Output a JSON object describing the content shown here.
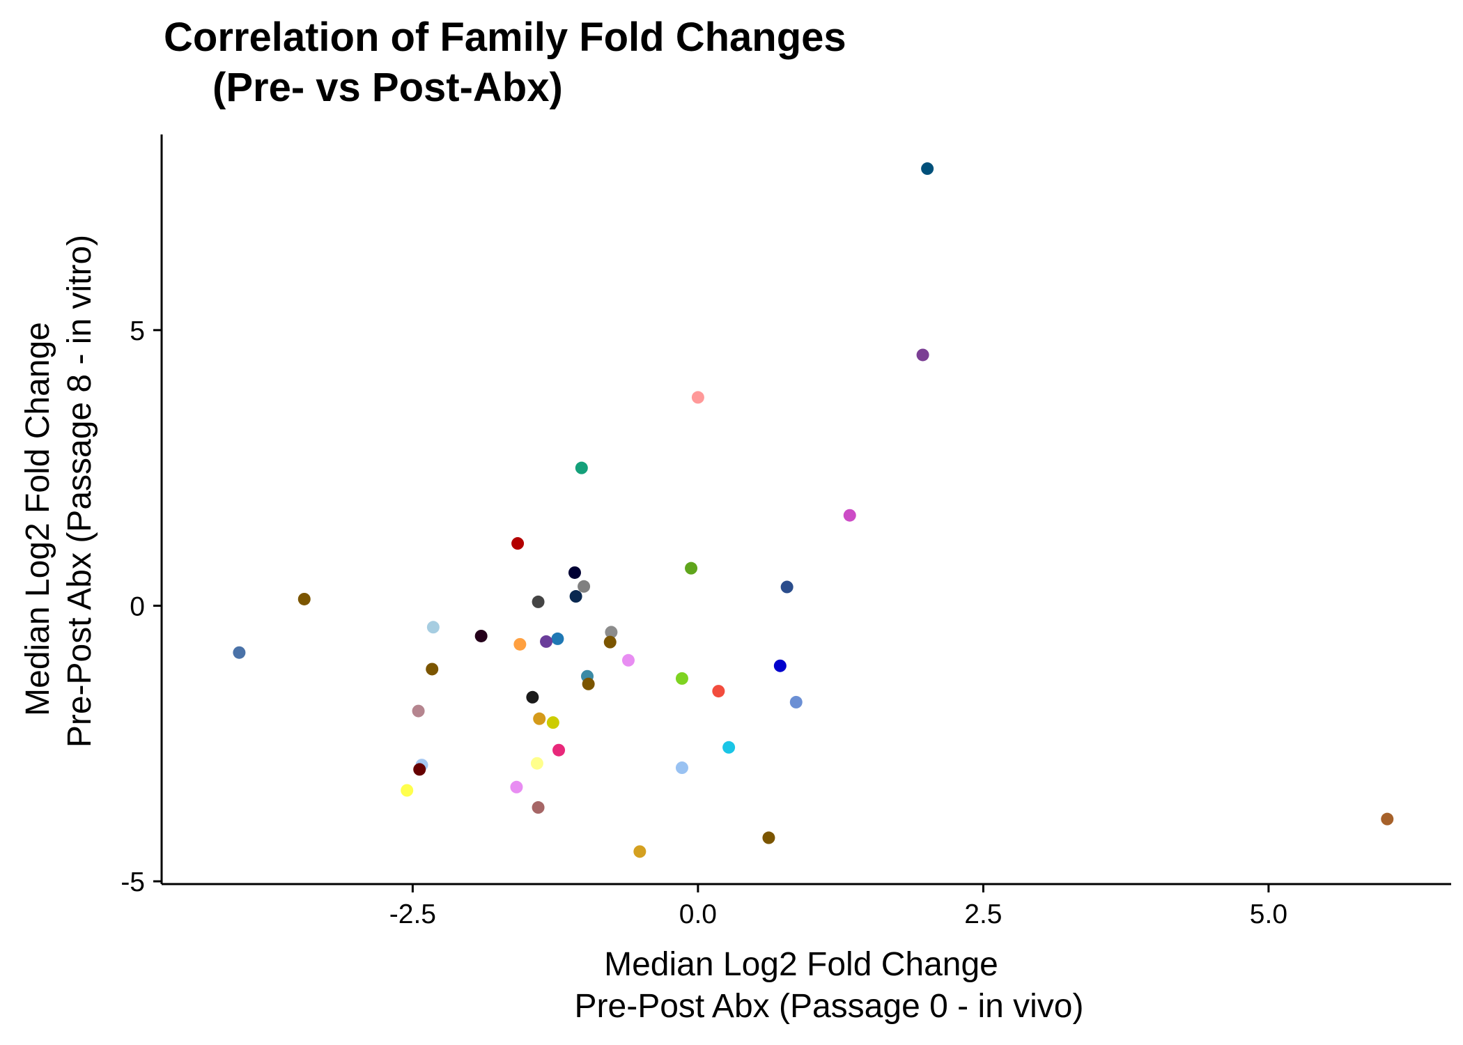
{
  "chart_data": {
    "type": "scatter",
    "title_lines": [
      "Correlation of Family Fold Changes",
      "(Pre- vs Post-Abx)"
    ],
    "xlabel_lines": [
      "Median Log2 Fold Change",
      "Pre-Post Abx (Passage 0 - in vivo)"
    ],
    "ylabel_lines": [
      "Median Log2 Fold Change",
      "Pre-Post Abx (Passage 8 - in vitro)"
    ],
    "xlim": [
      -4.7,
      6.6
    ],
    "ylim": [
      -5.05,
      8.55
    ],
    "x_ticks": [
      {
        "value": -2.5,
        "label": "-2.5"
      },
      {
        "value": 0.0,
        "label": "0.0"
      },
      {
        "value": 2.5,
        "label": "2.5"
      },
      {
        "value": 5.0,
        "label": "5.0"
      }
    ],
    "y_ticks": [
      {
        "value": -5,
        "label": "-5"
      },
      {
        "value": 0,
        "label": "0"
      },
      {
        "value": 5,
        "label": "5"
      }
    ],
    "grid": false,
    "legend": "none",
    "points": [
      {
        "x": 2.01,
        "y": 7.93,
        "color": "#00507a"
      },
      {
        "x": 1.97,
        "y": 4.55,
        "color": "#7b3f94"
      },
      {
        "x": 0.0,
        "y": 3.78,
        "color": "#ff9999"
      },
      {
        "x": -1.02,
        "y": 2.5,
        "color": "#14a07a"
      },
      {
        "x": 1.33,
        "y": 1.64,
        "color": "#cc4cc6"
      },
      {
        "x": -1.58,
        "y": 1.13,
        "color": "#b30000"
      },
      {
        "x": -0.06,
        "y": 0.68,
        "color": "#5fa51c"
      },
      {
        "x": -1.08,
        "y": 0.6,
        "color": "#000033"
      },
      {
        "x": -1.0,
        "y": 0.35,
        "color": "#808080"
      },
      {
        "x": 0.78,
        "y": 0.34,
        "color": "#2b4d8c"
      },
      {
        "x": -1.07,
        "y": 0.17,
        "color": "#0a2850"
      },
      {
        "x": -3.45,
        "y": 0.12,
        "color": "#7b5500"
      },
      {
        "x": -1.4,
        "y": 0.07,
        "color": "#444444"
      },
      {
        "x": -4.02,
        "y": -0.85,
        "color": "#4a72a8"
      },
      {
        "x": -2.32,
        "y": -0.39,
        "color": "#a6cde1"
      },
      {
        "x": -0.76,
        "y": -0.48,
        "color": "#8c8c8c"
      },
      {
        "x": -1.9,
        "y": -0.55,
        "color": "#24001a"
      },
      {
        "x": -1.23,
        "y": -0.6,
        "color": "#1f78b4"
      },
      {
        "x": -1.33,
        "y": -0.65,
        "color": "#6a3d9a"
      },
      {
        "x": -1.56,
        "y": -0.7,
        "color": "#ffa040"
      },
      {
        "x": -0.77,
        "y": -0.66,
        "color": "#7b5500"
      },
      {
        "x": -0.61,
        "y": -0.99,
        "color": "#e88df2"
      },
      {
        "x": -2.33,
        "y": -1.15,
        "color": "#7b5500"
      },
      {
        "x": 0.72,
        "y": -1.09,
        "color": "#0000cc"
      },
      {
        "x": -0.97,
        "y": -1.28,
        "color": "#3a8aa5"
      },
      {
        "x": -0.96,
        "y": -1.42,
        "color": "#7b5500"
      },
      {
        "x": -0.14,
        "y": -1.32,
        "color": "#7ed321"
      },
      {
        "x": 0.18,
        "y": -1.55,
        "color": "#f24c3d"
      },
      {
        "x": 0.86,
        "y": -1.75,
        "color": "#6b8fd4"
      },
      {
        "x": -1.45,
        "y": -1.66,
        "color": "#1a1a1a"
      },
      {
        "x": -2.45,
        "y": -1.91,
        "color": "#b5858f"
      },
      {
        "x": -1.39,
        "y": -2.05,
        "color": "#d49a1a"
      },
      {
        "x": -1.27,
        "y": -2.12,
        "color": "#cccc00"
      },
      {
        "x": -1.22,
        "y": -2.62,
        "color": "#e8287a"
      },
      {
        "x": 0.27,
        "y": -2.57,
        "color": "#1ac5e6"
      },
      {
        "x": -2.42,
        "y": -2.89,
        "color": "#a6c8f2"
      },
      {
        "x": -2.44,
        "y": -2.97,
        "color": "#660000"
      },
      {
        "x": -1.41,
        "y": -2.86,
        "color": "#ffff8c"
      },
      {
        "x": -0.14,
        "y": -2.94,
        "color": "#99c2f2"
      },
      {
        "x": -1.59,
        "y": -3.29,
        "color": "#e88df2"
      },
      {
        "x": -2.55,
        "y": -3.35,
        "color": "#ffff4d"
      },
      {
        "x": -1.4,
        "y": -3.66,
        "color": "#a66666"
      },
      {
        "x": 0.62,
        "y": -4.21,
        "color": "#7b5500"
      },
      {
        "x": -0.51,
        "y": -4.46,
        "color": "#d4a020"
      },
      {
        "x": 6.04,
        "y": -3.87,
        "color": "#a6612a"
      }
    ]
  }
}
